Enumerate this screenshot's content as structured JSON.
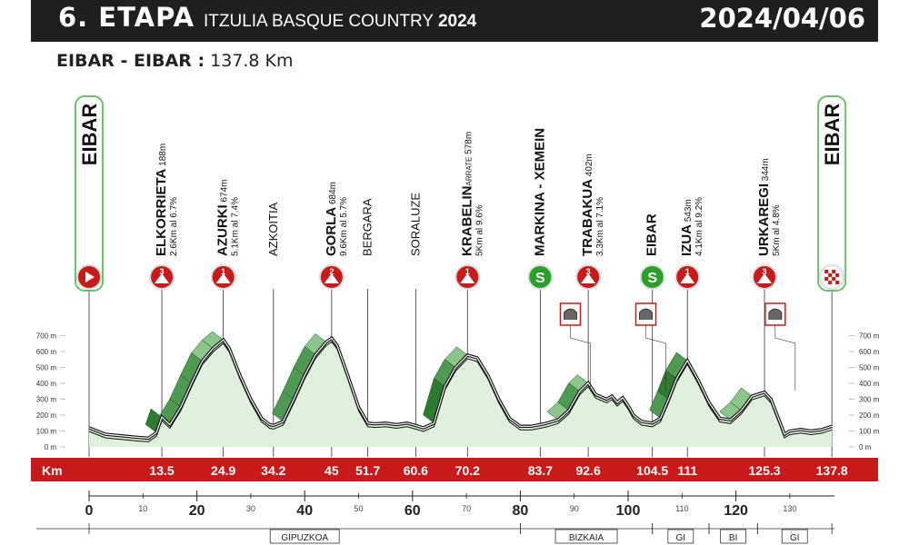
{
  "header": {
    "stage": "6. ETAPA",
    "race_name": "ITZULIA BASQUE COUNTRY",
    "race_year": "2024",
    "date": "2024/04/06"
  },
  "route": {
    "title": "EIBAR - EIBAR :",
    "distance": "137.8 Km"
  },
  "points": [
    {
      "km": 0,
      "name": "EIBAR",
      "type": "start",
      "box": true
    },
    {
      "km": 13.5,
      "name": "ELKORRIETA",
      "alt": "188m",
      "climb": "2.6Km al 6.7%",
      "cat": "3",
      "km_label": "13.5"
    },
    {
      "km": 24.9,
      "name": "AZURKI",
      "alt": "674m",
      "climb": "5.1Km al 7.4%",
      "cat": "1",
      "km_label": "24.9"
    },
    {
      "km": 34.2,
      "name": "AZKOITIA",
      "type": "town",
      "km_label": "34.2"
    },
    {
      "km": 45,
      "name": "GORLA",
      "alt": "684m",
      "climb": "9.6Km al 5.7%",
      "cat": "2",
      "km_label": "45"
    },
    {
      "km": 51.7,
      "name": "BERGARA",
      "type": "town",
      "km_label": "51.7"
    },
    {
      "km": 60.6,
      "name": "SORALUZE",
      "type": "town",
      "km_label": "60.6"
    },
    {
      "km": 70.2,
      "name": "KRABELIN",
      "sub": "ARRATE",
      "alt": "578m",
      "climb": "5Km al 9.6%",
      "cat": "1",
      "km_label": "70.2"
    },
    {
      "km": 83.7,
      "name": "MARKINA - XEMEIN",
      "type": "sprint",
      "km_label": "83.7"
    },
    {
      "km": 92.6,
      "name": "TRABAKUA",
      "alt": "402m",
      "climb": "3.3Km al 7.1%",
      "cat": "3",
      "km_label": "92.6"
    },
    {
      "km": 104.5,
      "name": "EIBAR",
      "type": "sprint",
      "km_label": "104.5"
    },
    {
      "km": 111,
      "name": "IZUA",
      "alt": "543m",
      "climb": "4.1Km al 9.2%",
      "cat": "1",
      "km_label": "111"
    },
    {
      "km": 125.3,
      "name": "URKAREGI",
      "alt": "344m",
      "climb": "5Km al 4.8%",
      "cat": "3",
      "km_label": "125.3"
    },
    {
      "km": 137.8,
      "name": "EIBAR",
      "type": "finish",
      "box": true,
      "km_label": "137.8"
    }
  ],
  "km_bar_label": "Km",
  "profile": {
    "y_ticks": [
      "0 m",
      "100 m",
      "200 m",
      "300 m",
      "400 m",
      "500 m",
      "600 m",
      "700 m"
    ],
    "elevation": [
      [
        0,
        120
      ],
      [
        3,
        80
      ],
      [
        6,
        70
      ],
      [
        9,
        60
      ],
      [
        11,
        55
      ],
      [
        12.5,
        90
      ],
      [
        13.5,
        188
      ],
      [
        15,
        140
      ],
      [
        17,
        250
      ],
      [
        19,
        400
      ],
      [
        21,
        540
      ],
      [
        23,
        620
      ],
      [
        24.9,
        674
      ],
      [
        26,
        620
      ],
      [
        28,
        450
      ],
      [
        30,
        300
      ],
      [
        32,
        180
      ],
      [
        33.5,
        140
      ],
      [
        34.2,
        135
      ],
      [
        36,
        160
      ],
      [
        38,
        300
      ],
      [
        40,
        450
      ],
      [
        42,
        580
      ],
      [
        44,
        660
      ],
      [
        45,
        684
      ],
      [
        46,
        640
      ],
      [
        48,
        450
      ],
      [
        50,
        250
      ],
      [
        51.7,
        150
      ],
      [
        53,
        145
      ],
      [
        55,
        150
      ],
      [
        57,
        140
      ],
      [
        59,
        150
      ],
      [
        60.6,
        135
      ],
      [
        62,
        120
      ],
      [
        64,
        150
      ],
      [
        66,
        380
      ],
      [
        68,
        500
      ],
      [
        70.2,
        578
      ],
      [
        72,
        560
      ],
      [
        74,
        450
      ],
      [
        76,
        300
      ],
      [
        78,
        180
      ],
      [
        80,
        130
      ],
      [
        82,
        130
      ],
      [
        83.7,
        140
      ],
      [
        85,
        150
      ],
      [
        87,
        170
      ],
      [
        89,
        230
      ],
      [
        91,
        350
      ],
      [
        92.6,
        402
      ],
      [
        94,
        330
      ],
      [
        96,
        300
      ],
      [
        97,
        320
      ],
      [
        98,
        280
      ],
      [
        99,
        310
      ],
      [
        100,
        260
      ],
      [
        101,
        200
      ],
      [
        102.5,
        160
      ],
      [
        104.5,
        150
      ],
      [
        106,
        180
      ],
      [
        107.5,
        300
      ],
      [
        109,
        430
      ],
      [
        111,
        543
      ],
      [
        113,
        420
      ],
      [
        115,
        280
      ],
      [
        117,
        180
      ],
      [
        119,
        170
      ],
      [
        121,
        230
      ],
      [
        123,
        320
      ],
      [
        125.3,
        344
      ],
      [
        126.5,
        300
      ],
      [
        128,
        170
      ],
      [
        129,
        80
      ],
      [
        130,
        100
      ],
      [
        132,
        110
      ],
      [
        134,
        100
      ],
      [
        136,
        110
      ],
      [
        137.8,
        130
      ]
    ]
  },
  "axis": {
    "major": [
      0,
      20,
      40,
      60,
      80,
      100,
      120
    ],
    "minor": [
      10,
      30,
      50,
      70,
      90,
      110,
      130
    ]
  },
  "regions": [
    {
      "name": "GIPUZKOA",
      "from": 0,
      "to": 80
    },
    {
      "name": "BIZKAIA",
      "from": 80,
      "to": 104.5
    },
    {
      "name": "GI",
      "from": 104.5,
      "to": 115
    },
    {
      "name": "BI",
      "from": 115,
      "to": 124
    },
    {
      "name": "GI",
      "from": 124,
      "to": 137.8
    }
  ],
  "tunnels": [
    {
      "km_at": 93
    },
    {
      "km_at": 107
    },
    {
      "km_at": 131
    }
  ],
  "colors": {
    "red": "#c81a1a",
    "green_sprint": "#2aa02a",
    "climb_dark": "#2f7a33",
    "climb_light": "#8cc58c",
    "profile_fill": "#dff0dc",
    "box_border": "#6cbf6c"
  }
}
